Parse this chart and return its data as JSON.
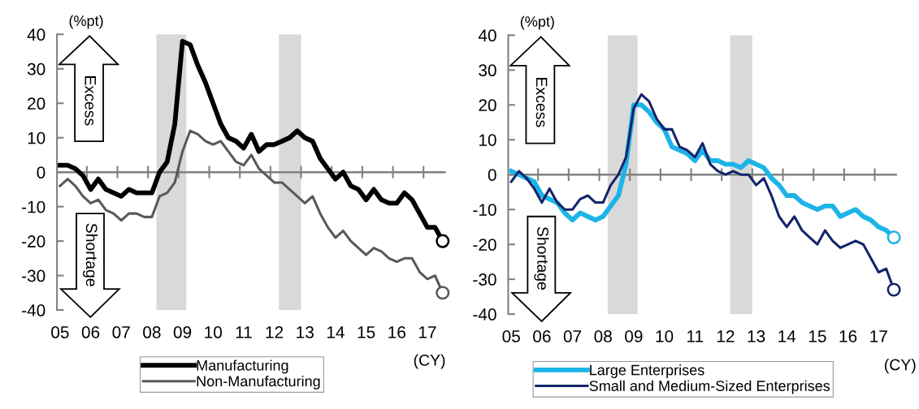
{
  "chart_data": [
    {
      "type": "line",
      "annotations": [
        "(%pt)",
        "(CY)",
        "Excess",
        "Shortage"
      ],
      "x": [
        2005,
        2005.25,
        2005.5,
        2005.75,
        2006,
        2006.25,
        2006.5,
        2006.75,
        2007,
        2007.25,
        2007.5,
        2007.75,
        2008,
        2008.25,
        2008.5,
        2008.75,
        2009,
        2009.25,
        2009.5,
        2009.75,
        2010,
        2010.25,
        2010.5,
        2010.75,
        2011,
        2011.25,
        2011.5,
        2011.75,
        2012,
        2012.25,
        2012.5,
        2012.75,
        2013,
        2013.25,
        2013.5,
        2013.75,
        2014,
        2014.25,
        2014.5,
        2014.75,
        2015,
        2015.25,
        2015.5,
        2015.75,
        2016,
        2016.25,
        2016.5,
        2016.75,
        2017,
        2017.25,
        2017.5
      ],
      "series": [
        {
          "name": "Manufacturing",
          "color": "#000000",
          "line_style": "solid",
          "values": [
            2,
            2,
            1,
            -1,
            -5,
            -2,
            -5,
            -6,
            -7,
            -5,
            -6,
            -6,
            -6,
            0,
            3,
            14,
            38,
            37,
            31,
            26,
            20,
            14,
            10,
            9,
            7,
            11,
            6,
            8,
            8,
            9,
            10,
            12,
            10,
            9,
            4,
            1,
            -2,
            0,
            -4,
            -5,
            -8,
            -5,
            -8,
            -9,
            -9,
            -6,
            -8,
            -12,
            -16,
            -16,
            -20
          ]
        },
        {
          "name": "Non-Manufacturing",
          "color": "#595959",
          "line_style": "solid",
          "values": [
            -4,
            -2,
            -4,
            -7,
            -9,
            -8,
            -11,
            -12,
            -14,
            -12,
            -12,
            -13,
            -13,
            -7,
            -6,
            -3,
            6,
            12,
            11,
            9,
            8,
            9,
            6,
            3,
            2,
            5,
            1,
            -1,
            -3,
            -3,
            -5,
            -7,
            -9,
            -7,
            -12,
            -16,
            -19,
            -17,
            -20,
            -22,
            -24,
            -22,
            -23,
            -25,
            -26,
            -25,
            -25,
            -29,
            -31,
            -30,
            -35
          ]
        },
        {
          "type": "scatter",
          "color": "#000000",
          "marker": "circle",
          "values": [
            null,
            null,
            null,
            null,
            null,
            null,
            null,
            null,
            null,
            null,
            null,
            null,
            null,
            null,
            null,
            null,
            null,
            null,
            null,
            null,
            null,
            null,
            null,
            null,
            null,
            null,
            null,
            null,
            null,
            null,
            null,
            null,
            null,
            null,
            null,
            null,
            null,
            null,
            null,
            null,
            null,
            null,
            null,
            null,
            null,
            null,
            null,
            null,
            null,
            null,
            -20
          ]
        },
        {
          "type": "scatter",
          "color": "#595959",
          "marker": "circle",
          "values": [
            null,
            null,
            null,
            null,
            null,
            null,
            null,
            null,
            null,
            null,
            null,
            null,
            null,
            null,
            null,
            null,
            null,
            null,
            null,
            null,
            null,
            null,
            null,
            null,
            null,
            null,
            null,
            null,
            null,
            null,
            null,
            null,
            null,
            null,
            null,
            null,
            null,
            null,
            null,
            null,
            null,
            null,
            null,
            null,
            null,
            null,
            null,
            null,
            null,
            null,
            -35
          ]
        }
      ],
      "xlim": [
        2004.9,
        2017.6
      ],
      "ylim": [
        -40,
        40
      ],
      "yticks": [
        -40,
        -30,
        -20,
        -10,
        0,
        10,
        20,
        30,
        40
      ],
      "xticks": [
        {
          "value": 2005,
          "label": "05"
        },
        {
          "value": 2006,
          "label": "06"
        },
        {
          "value": 2007,
          "label": "07"
        },
        {
          "value": 2008,
          "label": "08"
        },
        {
          "value": 2009,
          "label": "09"
        },
        {
          "value": 2010,
          "label": "10"
        },
        {
          "value": 2011,
          "label": "11"
        },
        {
          "value": 2012,
          "label": "12"
        },
        {
          "value": 2013,
          "label": "13"
        },
        {
          "value": 2014,
          "label": "14"
        },
        {
          "value": 2015,
          "label": "15"
        },
        {
          "value": 2016,
          "label": "16"
        },
        {
          "value": 2017,
          "label": "17"
        }
      ],
      "ref_lines": [
        {
          "axis": "y",
          "value": 0,
          "color": "#808080"
        }
      ],
      "bands": [
        {
          "axis": "x",
          "from": 2008.15,
          "to": 2009.125,
          "color": "#d9d9d9"
        },
        {
          "axis": "x",
          "from": 2012.15,
          "to": 2012.875,
          "color": "#d9d9d9"
        }
      ],
      "grid": false,
      "legend": "bottom"
    },
    {
      "type": "line",
      "annotations": [
        "(%pt)",
        "(CY)",
        "Excess",
        "Shortage"
      ],
      "x": [
        2005,
        2005.25,
        2005.5,
        2005.75,
        2006,
        2006.25,
        2006.5,
        2006.75,
        2007,
        2007.25,
        2007.5,
        2007.75,
        2008,
        2008.25,
        2008.5,
        2008.75,
        2009,
        2009.25,
        2009.5,
        2009.75,
        2010,
        2010.25,
        2010.5,
        2010.75,
        2011,
        2011.25,
        2011.5,
        2011.75,
        2012,
        2012.25,
        2012.5,
        2012.75,
        2013,
        2013.25,
        2013.5,
        2013.75,
        2014,
        2014.25,
        2014.5,
        2014.75,
        2015,
        2015.25,
        2015.5,
        2015.75,
        2016,
        2016.25,
        2016.5,
        2016.75,
        2017,
        2017.25,
        2017.5
      ],
      "series": [
        {
          "name": "Large Enterprises",
          "color": "#1cb4e8",
          "line_style": "solid",
          "values": [
            1,
            0,
            -1,
            -2,
            -6,
            -7,
            -8,
            -11,
            -13,
            -11,
            -12,
            -13,
            -12,
            -9,
            -6,
            3,
            20,
            20,
            18,
            15,
            13,
            8,
            7,
            6,
            4,
            7,
            4,
            4,
            3,
            3,
            2,
            4,
            3,
            2,
            -1,
            -3,
            -6,
            -6,
            -8,
            -9,
            -10,
            -9,
            -9,
            -12,
            -11,
            -10,
            -12,
            -13,
            -15,
            -16,
            -18
          ]
        },
        {
          "name": "Small and Medium-Sized Enterprises",
          "color": "#14246b",
          "line_style": "solid",
          "values": [
            -2,
            1,
            -1,
            -4,
            -8,
            -4,
            -8,
            -10,
            -10,
            -7,
            -6,
            -8,
            -8,
            -3,
            0,
            5,
            19,
            23,
            21,
            16,
            13,
            13,
            8,
            7,
            5,
            9,
            3,
            1,
            0,
            1,
            0,
            0,
            -3,
            -1,
            -6,
            -12,
            -15,
            -12,
            -16,
            -18,
            -20,
            -16,
            -19,
            -21,
            -20,
            -19,
            -20,
            -24,
            -28,
            -27,
            -33
          ]
        },
        {
          "type": "scatter",
          "color": "#1cb4e8",
          "marker": "circle",
          "values": [
            null,
            null,
            null,
            null,
            null,
            null,
            null,
            null,
            null,
            null,
            null,
            null,
            null,
            null,
            null,
            null,
            null,
            null,
            null,
            null,
            null,
            null,
            null,
            null,
            null,
            null,
            null,
            null,
            null,
            null,
            null,
            null,
            null,
            null,
            null,
            null,
            null,
            null,
            null,
            null,
            null,
            null,
            null,
            null,
            null,
            null,
            null,
            null,
            null,
            null,
            -18
          ]
        },
        {
          "type": "scatter",
          "color": "#14246b",
          "marker": "circle",
          "values": [
            null,
            null,
            null,
            null,
            null,
            null,
            null,
            null,
            null,
            null,
            null,
            null,
            null,
            null,
            null,
            null,
            null,
            null,
            null,
            null,
            null,
            null,
            null,
            null,
            null,
            null,
            null,
            null,
            null,
            null,
            null,
            null,
            null,
            null,
            null,
            null,
            null,
            null,
            null,
            null,
            null,
            null,
            null,
            null,
            null,
            null,
            null,
            null,
            null,
            null,
            -33
          ]
        }
      ],
      "xlim": [
        2004.9,
        2017.6
      ],
      "ylim": [
        -40,
        40
      ],
      "yticks": [
        -40,
        -30,
        -20,
        -10,
        0,
        10,
        20,
        30,
        40
      ],
      "xticks": [
        {
          "value": 2005,
          "label": "05"
        },
        {
          "value": 2006,
          "label": "06"
        },
        {
          "value": 2007,
          "label": "07"
        },
        {
          "value": 2008,
          "label": "08"
        },
        {
          "value": 2009,
          "label": "09"
        },
        {
          "value": 2010,
          "label": "10"
        },
        {
          "value": 2011,
          "label": "11"
        },
        {
          "value": 2012,
          "label": "12"
        },
        {
          "value": 2013,
          "label": "13"
        },
        {
          "value": 2014,
          "label": "14"
        },
        {
          "value": 2015,
          "label": "15"
        },
        {
          "value": 2016,
          "label": "16"
        },
        {
          "value": 2017,
          "label": "17"
        }
      ],
      "ref_lines": [
        {
          "axis": "y",
          "value": 0,
          "color": "#808080"
        }
      ],
      "bands": [
        {
          "axis": "x",
          "from": 2008.15,
          "to": 2009.125,
          "color": "#d9d9d9"
        },
        {
          "axis": "x",
          "from": 2012.15,
          "to": 2012.875,
          "color": "#d9d9d9"
        }
      ],
      "grid": false,
      "legend": "bottom"
    }
  ]
}
